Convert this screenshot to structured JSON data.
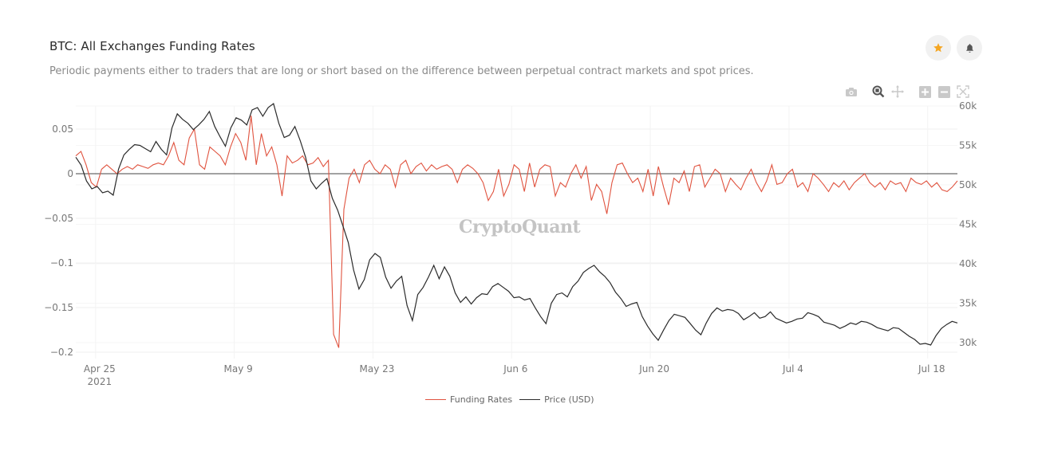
{
  "header": {
    "title": "BTC: All Exchanges Funding Rates",
    "subtitle": "Periodic payments either to traders that are long or short based on the difference between perpetual contract markets and spot prices."
  },
  "actions": {
    "favorite_icon": "star-icon",
    "alert_icon": "bell-icon",
    "star_color": "#f5a623"
  },
  "modebar": [
    "camera-icon",
    "zoom-icon",
    "pan-icon",
    "zoom-in-icon",
    "zoom-out-icon",
    "autoscale-icon"
  ],
  "watermark": "CryptoQuant",
  "chart_data": {
    "type": "line",
    "title": "BTC: All Exchanges Funding Rates",
    "x_start": "2021-04-23",
    "x_end": "2021-07-21",
    "x_ticks": [
      {
        "date": "2021-04-25",
        "label": "Apr 25",
        "sublabel": "2021"
      },
      {
        "date": "2021-05-09",
        "label": "May 9"
      },
      {
        "date": "2021-05-23",
        "label": "May 23"
      },
      {
        "date": "2021-06-06",
        "label": "Jun 6"
      },
      {
        "date": "2021-06-20",
        "label": "Jun 20"
      },
      {
        "date": "2021-07-04",
        "label": "Jul 4"
      },
      {
        "date": "2021-07-18",
        "label": "Jul 18"
      }
    ],
    "y_left": {
      "range": [
        -0.21,
        0.07
      ],
      "ticks": [
        0.05,
        0,
        -0.05,
        -0.1,
        -0.15,
        -0.2
      ],
      "tick_labels": [
        "0.05",
        "0",
        "−0.05",
        "−0.1",
        "−0.15",
        "−0.2"
      ]
    },
    "y_right": {
      "range": [
        29000,
        60000
      ],
      "ticks": [
        60000,
        55000,
        50000,
        45000,
        40000,
        35000,
        30000
      ],
      "tick_labels": [
        "60k",
        "55k",
        "50k",
        "45k",
        "40k",
        "35k",
        "30k"
      ]
    },
    "grid": true,
    "legend_position": "bottom-center",
    "series": [
      {
        "name": "Funding Rates",
        "axis": "left",
        "color": "#e0533f",
        "values": [
          0.02,
          0.025,
          0.01,
          -0.01,
          -0.015,
          0.005,
          0.01,
          0.005,
          0.0,
          0.005,
          0.008,
          0.005,
          0.01,
          0.008,
          0.006,
          0.01,
          0.012,
          0.01,
          0.02,
          0.035,
          0.015,
          0.01,
          0.04,
          0.05,
          0.01,
          0.005,
          0.03,
          0.025,
          0.02,
          0.01,
          0.03,
          0.045,
          0.035,
          0.015,
          0.065,
          0.01,
          0.045,
          0.02,
          0.03,
          0.01,
          -0.025,
          0.02,
          0.012,
          0.015,
          0.02,
          0.01,
          0.012,
          0.018,
          0.008,
          0.015,
          -0.18,
          -0.195,
          -0.04,
          -0.005,
          0.005,
          -0.01,
          0.01,
          0.015,
          0.005,
          0.0,
          0.01,
          0.005,
          -0.015,
          0.01,
          0.015,
          0.0,
          0.008,
          0.012,
          0.003,
          0.01,
          0.005,
          0.008,
          0.01,
          0.005,
          -0.01,
          0.005,
          0.01,
          0.006,
          0.0,
          -0.01,
          -0.03,
          -0.02,
          0.005,
          -0.025,
          -0.012,
          0.01,
          0.005,
          -0.02,
          0.012,
          -0.015,
          0.005,
          0.01,
          0.008,
          -0.025,
          -0.01,
          -0.015,
          0.0,
          0.01,
          -0.005,
          0.008,
          -0.03,
          -0.012,
          -0.02,
          -0.045,
          -0.01,
          0.01,
          0.012,
          0.0,
          -0.01,
          -0.005,
          -0.02,
          0.005,
          -0.025,
          0.008,
          -0.015,
          -0.035,
          -0.005,
          -0.01,
          0.003,
          -0.02,
          0.008,
          0.01,
          -0.015,
          -0.005,
          0.005,
          0.0,
          -0.02,
          -0.005,
          -0.012,
          -0.018,
          -0.005,
          0.005,
          -0.01,
          -0.02,
          -0.008,
          0.01,
          -0.012,
          -0.01,
          0.0,
          0.005,
          -0.015,
          -0.01,
          -0.02,
          0.0,
          -0.005,
          -0.012,
          -0.02,
          -0.01,
          -0.015,
          -0.008,
          -0.018,
          -0.01,
          -0.005,
          0.0,
          -0.01,
          -0.015,
          -0.01,
          -0.018,
          -0.008,
          -0.012,
          -0.01,
          -0.02,
          -0.005,
          -0.01,
          -0.012,
          -0.008,
          -0.015,
          -0.01,
          -0.018,
          -0.02,
          -0.015,
          -0.008
        ]
      },
      {
        "name": "Price (USD)",
        "axis": "right",
        "color": "#2b2b2b",
        "values": [
          53500,
          52500,
          50500,
          49500,
          49800,
          49000,
          49200,
          48700,
          52000,
          53800,
          54500,
          55100,
          55000,
          54600,
          54200,
          55500,
          54500,
          53800,
          57200,
          59000,
          58300,
          57800,
          57000,
          57600,
          58300,
          59300,
          57400,
          56100,
          54900,
          57200,
          58500,
          58200,
          57600,
          59500,
          59800,
          58700,
          59800,
          60300,
          57800,
          56000,
          56300,
          57400,
          55600,
          53500,
          50500,
          49500,
          50200,
          50800,
          48300,
          46800,
          44800,
          42700,
          39200,
          36800,
          38000,
          40500,
          41300,
          40800,
          38300,
          36900,
          37800,
          38400,
          34700,
          32800,
          36100,
          37000,
          38300,
          39800,
          38100,
          39600,
          38400,
          36300,
          35100,
          35800,
          34900,
          35700,
          36200,
          36100,
          37100,
          37500,
          37000,
          36500,
          35700,
          35800,
          35400,
          35600,
          34400,
          33300,
          32400,
          35000,
          36100,
          36300,
          35800,
          37100,
          37800,
          38900,
          39400,
          39800,
          39000,
          38400,
          37600,
          36400,
          35600,
          34600,
          34900,
          35100,
          33300,
          32100,
          31100,
          30300,
          31600,
          32800,
          33600,
          33400,
          33200,
          32400,
          31600,
          31000,
          32500,
          33700,
          34400,
          34000,
          34200,
          34100,
          33700,
          32900,
          33300,
          33800,
          33100,
          33300,
          33900,
          33100,
          32800,
          32500,
          32700,
          33000,
          33100,
          33800,
          33600,
          33300,
          32600,
          32400,
          32200,
          31800,
          32100,
          32500,
          32300,
          32700,
          32600,
          32300,
          31900,
          31700,
          31500,
          31900,
          31800,
          31300,
          30800,
          30400,
          29800,
          29900,
          29700,
          30900,
          31800,
          32300,
          32700,
          32500
        ]
      }
    ]
  }
}
